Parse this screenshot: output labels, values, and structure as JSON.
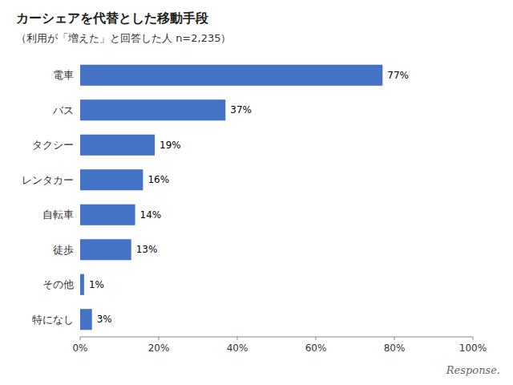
{
  "chart_data": {
    "type": "bar",
    "orientation": "horizontal",
    "title": "カーシェアを代替とした移動手段",
    "subtitle": "（利用が「増えた」と回答した人  n=2,235）",
    "annotations": [
      "Response."
    ],
    "categories": [
      "電車",
      "バス",
      "タクシー",
      "レンタカー",
      "自転車",
      "徒歩",
      "その他",
      "特になし"
    ],
    "values": [
      77,
      37,
      19,
      16,
      14,
      13,
      1,
      3
    ],
    "value_labels": [
      "77%",
      "37%",
      "19%",
      "16%",
      "14%",
      "13%",
      "1%",
      "3%"
    ],
    "data_labels": true,
    "color": "#4472c4",
    "xlim": [
      0,
      100
    ],
    "xticks": [
      {
        "value": 0,
        "label": "0%"
      },
      {
        "value": 20,
        "label": "20%"
      },
      {
        "value": 40,
        "label": "40%"
      },
      {
        "value": 60,
        "label": "60%"
      },
      {
        "value": 80,
        "label": "80%"
      },
      {
        "value": 100,
        "label": "100%"
      }
    ],
    "grid": false
  }
}
